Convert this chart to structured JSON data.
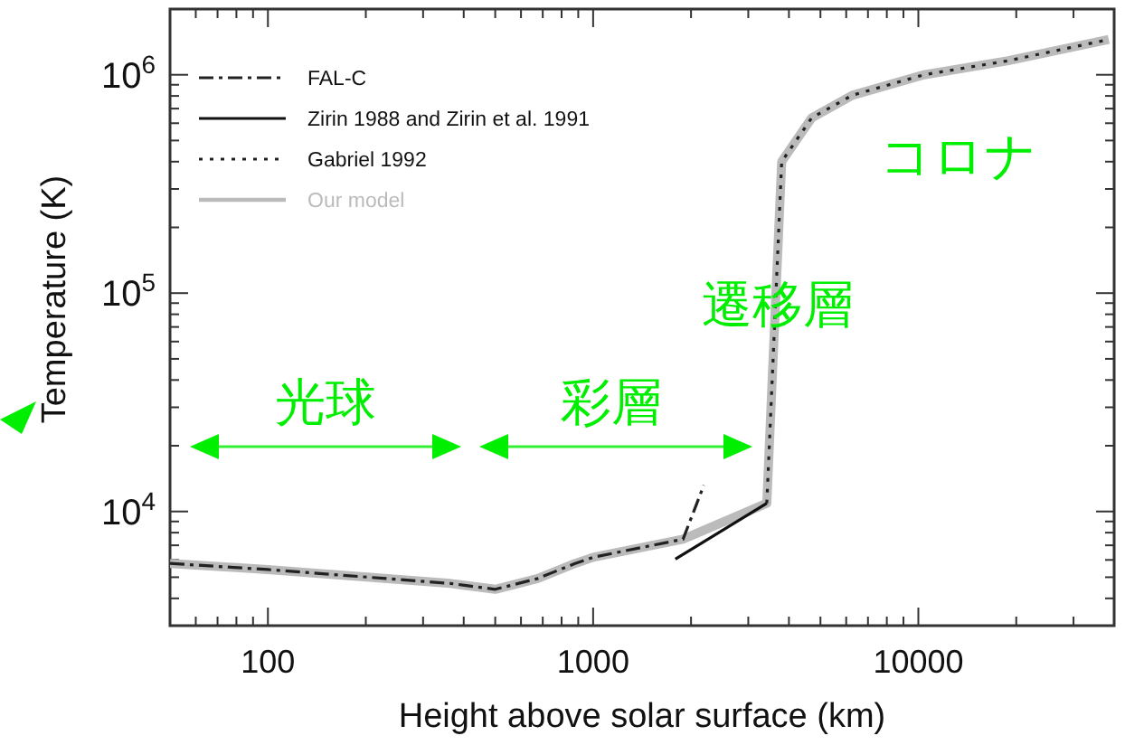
{
  "chart_data": {
    "type": "line",
    "xlabel": "Height above solar surface (km)",
    "ylabel": "Temperature (K)",
    "log": "xy",
    "xlim": [
      50,
      40000
    ],
    "ylim": [
      3000,
      2000000
    ],
    "xticks": [
      100,
      1000,
      10000
    ],
    "yticks": [
      {
        "value": 10000,
        "label": "10$^{4}$"
      },
      {
        "value": 100000,
        "label": "10$^{5}$"
      },
      {
        "value": 1000000,
        "label": "10$^{6}$"
      }
    ],
    "grid": false,
    "legend": "top left",
    "series": [
      {
        "name": "FAL-C",
        "color": "#222222",
        "line_style": "dashdot",
        "x": [
          50,
          100,
          365,
          500,
          675,
          880,
          1000,
          1890,
          2190
        ],
        "values": [
          5780,
          5420,
          4680,
          4400,
          4930,
          5780,
          6170,
          7470,
          13200
        ]
      },
      {
        "name": "Zirin 1988 and Zirin et al. 1991",
        "color": "#111111",
        "line_style": "solid",
        "x": [
          1790,
          3420
        ],
        "values": [
          6050,
          10900
        ]
      },
      {
        "name": "Gabriel 1992",
        "color": "#222222",
        "line_style": "dotted",
        "x": [
          3420,
          3800,
          4700,
          6270,
          10400,
          18900,
          38500
        ],
        "values": [
          10900,
          400000,
          635000,
          806000,
          1000000,
          1160000,
          1450000
        ]
      },
      {
        "name": "Our model",
        "color": "#bbbbbb",
        "line_style": "solid",
        "x": [
          50,
          100,
          365,
          500,
          675,
          880,
          1000,
          1890,
          3420,
          3800,
          4700,
          6270,
          10400,
          18900,
          38500
        ],
        "values": [
          5780,
          5420,
          4680,
          4400,
          4930,
          5780,
          6170,
          7470,
          10900,
          400000,
          635000,
          806000,
          1000000,
          1160000,
          1450000
        ]
      }
    ],
    "annotations": [
      "光球",
      "彩層",
      "遷移層",
      "コロナ"
    ]
  }
}
